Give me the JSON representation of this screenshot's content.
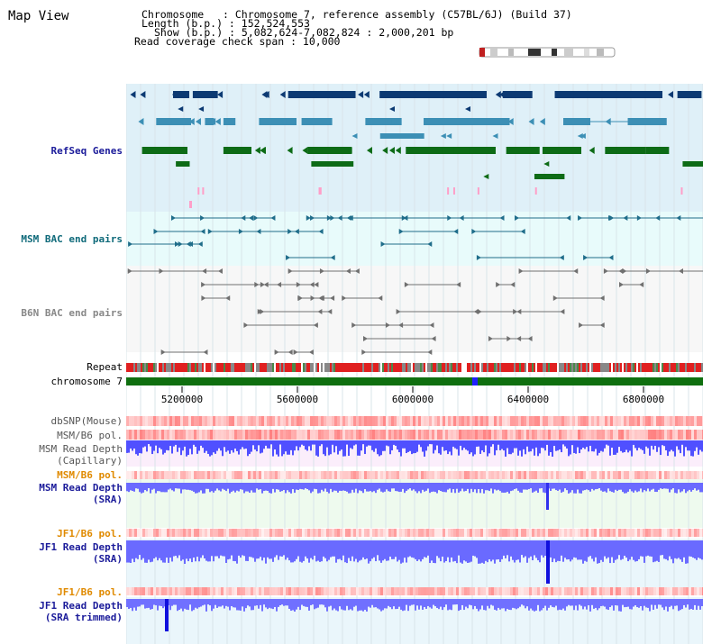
{
  "title": "Map View",
  "info": {
    "chromosome": "Chromosome   : Chromosome 7, reference assembly (C57BL/6J) (Build 37)",
    "length": "Length (b.p.) : 152,524,553",
    "show": "Show (b.p.) : 5,082,624-7,082,824 : 2,000,201 bp",
    "coverage": "Read coverage check span : 10,000"
  },
  "tracks": {
    "refseq": "RefSeq Genes",
    "msm_bac": "MSM BAC end pairs",
    "b6n_bac": "B6N BAC end pairs",
    "repeat": "Repeat",
    "chromosome": "chromosome 7",
    "dbsnp": "dbSNP(Mouse)",
    "msm_b6_pol_1": "MSM/B6 pol.",
    "msm_read_depth_cap_1": "MSM Read Depth",
    "msm_read_depth_cap_2": "(Capillary)",
    "msm_b6_pol_2": "MSM/B6 pol.",
    "msm_read_depth_sra_1": "MSM Read Depth",
    "msm_read_depth_sra_2": "(SRA)",
    "jf1_b6_pol_1": "JF1/B6 pol.",
    "jf1_read_depth_sra_1": "JF1 Read Depth",
    "jf1_read_depth_sra_2": "(SRA)",
    "jf1_b6_pol_2": "JF1/B6 pol.",
    "jf1_read_depth_trim_1": "JF1 Read Depth",
    "jf1_read_depth_trim_2": "(SRA trimmed)"
  },
  "axis": {
    "ticks": [
      "5200000",
      "5600000",
      "6000000",
      "6400000",
      "6800000"
    ]
  },
  "colors": {
    "refseq_bg": "#dff0f8",
    "bac_bg": "#e8fbfb",
    "gene_dark": "#0c3a73",
    "gene_mid": "#3c8fb5",
    "gene_green": "#0d6b16",
    "bac_teal": "#1f6d8a",
    "b6n_gray": "#707070",
    "chromosome_green": "#0f6f0f",
    "snp_red": "#ff6060",
    "depth_blue": "#6a6aff",
    "label_blue": "#1b1b9a",
    "label_orange": "#e08a00",
    "label_teal": "#0f6a7a"
  }
}
